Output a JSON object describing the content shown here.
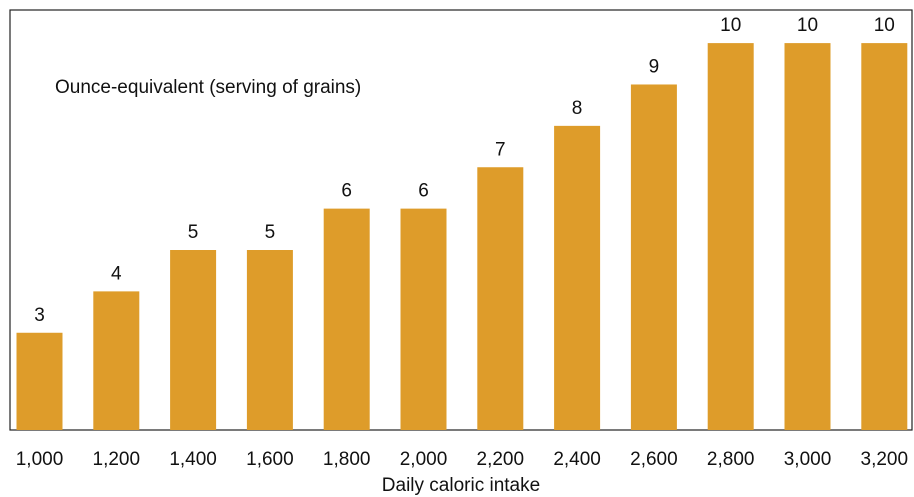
{
  "chart_data": {
    "type": "bar",
    "annotation": "Ounce-equivalent (serving of grains)",
    "xlabel": "Daily caloric intake",
    "categories": [
      "1,000",
      "1,200",
      "1,400",
      "1,600",
      "1,800",
      "2,000",
      "2,200",
      "2,400",
      "2,600",
      "2,800",
      "3,000",
      "3,200"
    ],
    "values": [
      3,
      4,
      5,
      5,
      6,
      6,
      7,
      8,
      9,
      10,
      10,
      10
    ],
    "color": "#de9c2a",
    "ylim": [
      0.65,
      10.8
    ],
    "grid": false
  }
}
